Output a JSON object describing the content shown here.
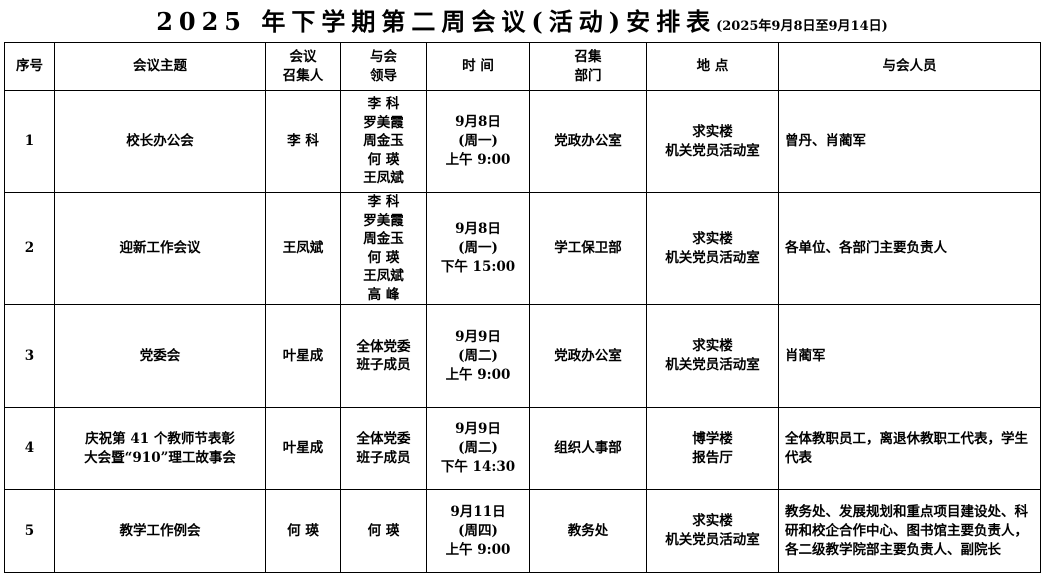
{
  "title": {
    "main": "2025 年下学期第二周会议(活动)安排表",
    "date_range": "(2025年9月8日至9月14日)"
  },
  "headers": [
    "序号",
    "会议主题",
    "会议\n召集人",
    "与会\n领导",
    "时  间",
    "召集\n部门",
    "地  点",
    "与会人员"
  ],
  "rows": [
    {
      "no": "1",
      "topic": [
        "校长办公会"
      ],
      "convener": "李  科",
      "leaders": [
        "李  科",
        "罗美霞",
        "周金玉",
        "何  瑛",
        "王凤斌"
      ],
      "time": [
        "9月8日",
        "(周一)",
        "上午 9:00"
      ],
      "dept": "党政办公室",
      "location": [
        "求实楼",
        "机关党员活动室"
      ],
      "attendees": "曾丹、肖蔺军"
    },
    {
      "no": "2",
      "topic": [
        "迎新工作会议"
      ],
      "convener": "王凤斌",
      "leaders": [
        "李  科",
        "罗美霞",
        "周金玉",
        "何  瑛",
        "王凤斌",
        "高  峰"
      ],
      "time": [
        "9月8日",
        "(周一)",
        "下午 15:00"
      ],
      "dept": "学工保卫部",
      "location": [
        "求实楼",
        "机关党员活动室"
      ],
      "attendees": "各单位、各部门主要负责人"
    },
    {
      "no": "3",
      "topic": [
        "党委会"
      ],
      "convener": "叶星成",
      "leaders": [
        "全体党委",
        "班子成员"
      ],
      "time": [
        "9月9日",
        "(周二)",
        "上午 9:00"
      ],
      "dept": "党政办公室",
      "location": [
        "求实楼",
        "机关党员活动室"
      ],
      "attendees": "肖蔺军"
    },
    {
      "no": "4",
      "topic": [
        "庆祝第 41 个教师节表彰",
        "大会暨“910”理工故事会"
      ],
      "convener": "叶星成",
      "leaders": [
        "全体党委",
        "班子成员"
      ],
      "time": [
        "9月9日",
        "(周二)",
        "下午 14:30"
      ],
      "dept": "组织人事部",
      "location": [
        "博学楼",
        "报告厅"
      ],
      "attendees": "全体教职员工，离退休教职工代表，学生代表"
    },
    {
      "no": "5",
      "topic": [
        "教学工作例会"
      ],
      "convener": "何  瑛",
      "leaders": [
        "何  瑛"
      ],
      "time": [
        "9月11日",
        "(周四)",
        "上午 9:00"
      ],
      "dept": "教务处",
      "location": [
        "求实楼",
        "机关党员活动室"
      ],
      "attendees": "教务处、发展规划和重点项目建设处、科研和校企合作中心、图书馆主要负责人，各二级教学院部主要负责人、副院长"
    }
  ]
}
